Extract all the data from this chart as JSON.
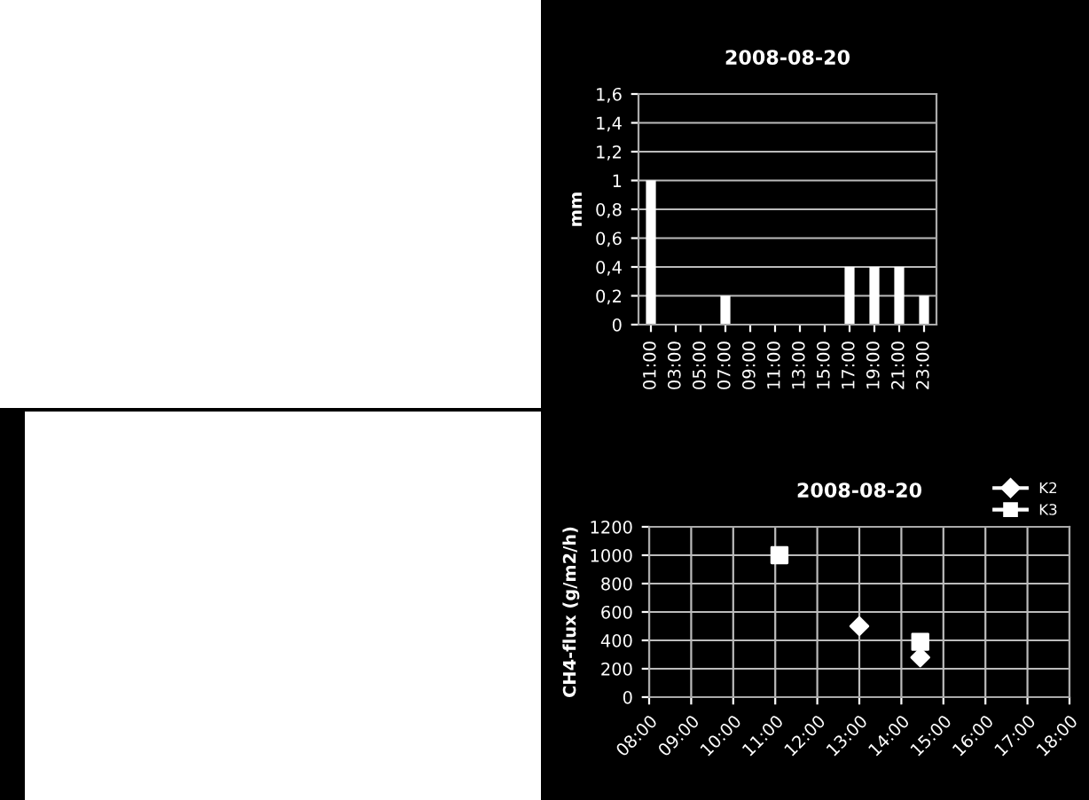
{
  "chart_data": [
    {
      "type": "bar",
      "title": "2008-08-20",
      "ylabel": "mm",
      "categories": [
        "01:00",
        "03:00",
        "05:00",
        "07:00",
        "09:00",
        "11:00",
        "13:00",
        "15:00",
        "17:00",
        "19:00",
        "21:00",
        "23:00"
      ],
      "values": [
        1,
        0,
        0,
        0.2,
        0,
        0,
        0,
        0,
        0.4,
        0.4,
        0.4,
        0.2
      ],
      "color": "#ffffff",
      "ylim": [
        0,
        1.6
      ],
      "yticks": [
        0,
        {
          "value": 0.2,
          "label": "0,2"
        },
        {
          "value": 0.4,
          "label": "0,4"
        },
        {
          "value": 0.6,
          "label": "0,6"
        },
        {
          "value": 0.8,
          "label": "0,8"
        },
        1,
        {
          "value": 1.2,
          "label": "1,2"
        },
        {
          "value": 1.4,
          "label": "1,4"
        },
        {
          "value": 1.6,
          "label": "1,6"
        }
      ],
      "grid": "y"
    },
    {
      "type": "scatter",
      "title": "2008-08-20",
      "ylabel": "CH4-flux (g/m2/h)",
      "legend": "top right",
      "series": [
        {
          "name": "K2",
          "color": "#ffffff",
          "marker": "diamond",
          "x": [
            13.0,
            14.45
          ],
          "values": [
            500,
            280
          ]
        },
        {
          "name": "K3",
          "color": "#ffffff",
          "marker": "square",
          "x": [
            11.1,
            14.45
          ],
          "values": [
            1000,
            390
          ]
        }
      ],
      "xlim": [
        8,
        18
      ],
      "xticks": [
        {
          "value": 8,
          "label": "08:00"
        },
        {
          "value": 9,
          "label": "09:00"
        },
        {
          "value": 10,
          "label": "10:00"
        },
        {
          "value": 11,
          "label": "11:00"
        },
        {
          "value": 12,
          "label": "12:00"
        },
        {
          "value": 13,
          "label": "13:00"
        },
        {
          "value": 14,
          "label": "14:00"
        },
        {
          "value": 15,
          "label": "15:00"
        },
        {
          "value": 16,
          "label": "16:00"
        },
        {
          "value": 17,
          "label": "17:00"
        },
        {
          "value": 18,
          "label": "18:00"
        }
      ],
      "ylim": [
        0,
        1200
      ],
      "yticks": [
        0,
        200,
        400,
        600,
        800,
        1000,
        1200
      ],
      "grid": true
    }
  ]
}
